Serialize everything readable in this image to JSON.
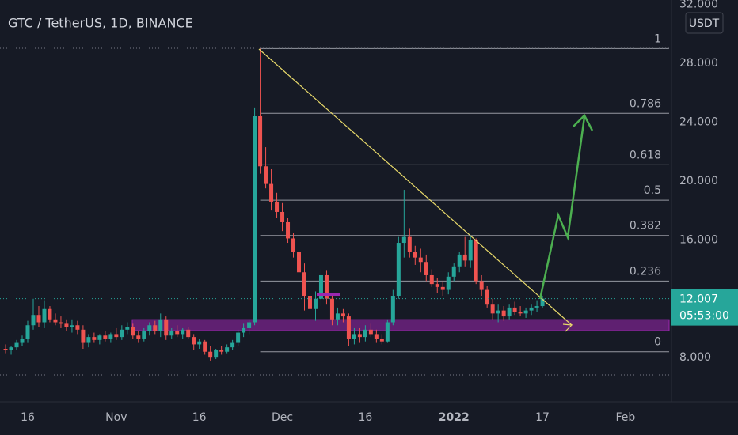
{
  "chart_data": {
    "type": "candlestick",
    "title": "GTC / TetherUS, 1D, BINANCE",
    "currency": "USDT",
    "countdown": "05:53:00",
    "up_color": "#26a69a",
    "down_color": "#ef5350",
    "categories": [
      null,
      null,
      null,
      null,
      "16",
      null,
      null,
      null,
      null,
      null,
      null,
      null,
      null,
      null,
      null,
      null,
      null,
      null,
      null,
      null,
      "Nov",
      null,
      null,
      null,
      null,
      null,
      null,
      null,
      null,
      null,
      null,
      null,
      null,
      null,
      null,
      "16",
      null,
      null,
      null,
      null,
      null,
      null,
      null,
      null,
      null,
      null,
      null,
      null,
      null,
      null,
      "Dec",
      null,
      null,
      null,
      null,
      null,
      null,
      null,
      null,
      null,
      null,
      null,
      null,
      null,
      null,
      "16",
      null,
      null,
      null,
      null,
      null,
      null,
      null,
      null,
      null,
      null,
      null,
      null,
      null,
      null,
      null,
      "2022",
      null,
      null,
      null,
      null,
      null,
      null,
      null,
      null,
      null,
      null,
      null,
      null,
      null,
      null,
      null,
      "17",
      null,
      null,
      null,
      null,
      null,
      null,
      null,
      null,
      null,
      null,
      null,
      null,
      null,
      null,
      "Feb",
      null,
      null,
      null,
      null,
      null,
      null
    ],
    "open": [
      8.6,
      8.5,
      8.7,
      9.0,
      9.3,
      10.2,
      10.9,
      10.4,
      11.3,
      10.6,
      10.4,
      10.3,
      10.1,
      10.2,
      9.9,
      9.0,
      9.4,
      9.2,
      9.5,
      9.3,
      9.6,
      9.4,
      9.9,
      10.1,
      9.5,
      9.3,
      9.8,
      10.2,
      9.8,
      10.6,
      9.5,
      9.8,
      9.6,
      9.9,
      9.4,
      8.9,
      9.1,
      8.4,
      8.0,
      8.5,
      8.4,
      8.7,
      9.0,
      9.7,
      10.0,
      10.4,
      24.4,
      21.0,
      19.8,
      18.6,
      17.9,
      17.2,
      16.1,
      15.2,
      13.8,
      12.2,
      11.3,
      12.0,
      13.6,
      12.0,
      10.6,
      11.0,
      10.8,
      9.3,
      9.6,
      9.4,
      9.9,
      9.6,
      9.3,
      9.1,
      10.4,
      12.2,
      15.8,
      16.2,
      15.2,
      14.8,
      14.5,
      13.6,
      13.0,
      12.8,
      12.6,
      13.5,
      14.2,
      15.0,
      14.6,
      16.0,
      13.2,
      12.6,
      11.6,
      11.0,
      11.2,
      10.8,
      11.4,
      11.1,
      11.0,
      11.2,
      11.4,
      11.5,
      null,
      null,
      null,
      null,
      null,
      null,
      null,
      null,
      null,
      null,
      null,
      null,
      null,
      null,
      null,
      null,
      null,
      null,
      null,
      null,
      null
    ],
    "high": [
      8.9,
      8.8,
      9.2,
      9.5,
      10.5,
      12.0,
      11.5,
      11.9,
      11.5,
      11.0,
      10.8,
      10.6,
      10.6,
      10.5,
      10.2,
      9.6,
      9.7,
      9.6,
      9.8,
      9.7,
      10.0,
      10.2,
      10.4,
      10.3,
      9.8,
      10.0,
      10.4,
      10.5,
      11.0,
      10.8,
      10.0,
      10.2,
      10.0,
      10.1,
      9.6,
      9.3,
      9.2,
      8.8,
      8.6,
      8.8,
      8.9,
      9.2,
      9.9,
      10.3,
      10.6,
      25.0,
      29.0,
      22.3,
      20.8,
      19.2,
      18.5,
      17.5,
      16.5,
      15.6,
      14.4,
      12.6,
      12.5,
      14.0,
      13.9,
      12.3,
      11.4,
      11.3,
      11.0,
      10.0,
      10.0,
      10.2,
      10.3,
      9.9,
      9.6,
      10.6,
      12.6,
      16.2,
      19.4,
      16.8,
      15.6,
      15.4,
      15.0,
      14.0,
      13.4,
      13.2,
      13.8,
      14.4,
      15.2,
      16.2,
      16.3,
      16.1,
      13.6,
      12.9,
      12.0,
      11.6,
      11.5,
      11.6,
      11.8,
      11.5,
      11.4,
      11.6,
      11.9,
      12.2,
      null,
      null,
      null,
      null,
      null,
      null,
      null,
      null,
      null,
      null,
      null,
      null,
      null,
      null,
      null,
      null,
      null,
      null,
      null,
      null,
      null
    ],
    "low": [
      8.3,
      8.2,
      8.5,
      8.8,
      9.0,
      9.9,
      10.1,
      10.0,
      10.4,
      10.2,
      10.0,
      9.8,
      9.7,
      9.6,
      8.6,
      8.7,
      9.0,
      8.9,
      9.1,
      9.0,
      9.2,
      9.2,
      9.6,
      9.3,
      9.0,
      9.1,
      9.5,
      9.6,
      9.4,
      9.2,
      9.3,
      9.4,
      9.3,
      9.3,
      8.5,
      8.6,
      8.2,
      7.8,
      7.9,
      8.2,
      8.3,
      8.5,
      8.8,
      9.4,
      9.6,
      10.2,
      20.5,
      19.5,
      18.0,
      17.5,
      16.6,
      15.8,
      14.8,
      13.2,
      11.2,
      10.2,
      10.5,
      11.5,
      11.6,
      10.2,
      10.2,
      10.4,
      8.8,
      8.9,
      9.0,
      9.1,
      9.4,
      9.0,
      8.9,
      9.0,
      10.2,
      12.0,
      14.8,
      14.8,
      14.3,
      13.8,
      13.2,
      12.8,
      12.4,
      12.2,
      12.3,
      13.2,
      13.8,
      14.2,
      14.1,
      13.0,
      12.2,
      11.4,
      10.6,
      10.4,
      10.5,
      10.6,
      10.9,
      10.8,
      10.7,
      10.9,
      11.1,
      11.4,
      null,
      null,
      null,
      null,
      null,
      null,
      null,
      null,
      null,
      null,
      null,
      null,
      null,
      null,
      null,
      null,
      null,
      null,
      null,
      null,
      null
    ],
    "close": [
      8.5,
      8.7,
      9.0,
      9.3,
      10.2,
      10.9,
      10.4,
      11.3,
      10.6,
      10.4,
      10.3,
      10.1,
      10.2,
      9.9,
      9.0,
      9.4,
      9.2,
      9.5,
      9.3,
      9.6,
      9.4,
      9.9,
      10.1,
      9.5,
      9.3,
      9.8,
      10.2,
      9.8,
      10.6,
      9.5,
      9.8,
      9.6,
      9.9,
      9.4,
      8.9,
      9.1,
      8.4,
      8.0,
      8.5,
      8.4,
      8.7,
      9.0,
      9.7,
      10.0,
      10.4,
      24.4,
      21.0,
      19.8,
      18.6,
      17.9,
      17.2,
      16.1,
      15.2,
      13.8,
      12.2,
      11.3,
      12.0,
      13.6,
      12.0,
      10.6,
      11.0,
      10.8,
      9.3,
      9.6,
      9.4,
      9.9,
      9.6,
      9.3,
      9.1,
      10.4,
      12.2,
      15.8,
      16.2,
      15.2,
      14.8,
      14.5,
      13.6,
      13.0,
      12.8,
      12.6,
      13.5,
      14.2,
      15.0,
      14.6,
      16.0,
      13.2,
      12.6,
      11.6,
      11.0,
      11.2,
      10.8,
      11.4,
      11.1,
      11.0,
      11.2,
      11.4,
      11.5,
      12.007,
      null,
      null,
      null,
      null,
      null,
      null,
      null,
      null,
      null,
      null,
      null,
      null,
      null,
      null,
      null,
      null,
      null,
      null,
      null,
      null,
      null
    ],
    "ylim": [
      5,
      32.3
    ],
    "yticks": [
      {
        "value": 8,
        "label": "8.000"
      },
      {
        "value": 12,
        "label": "12.000"
      },
      {
        "value": 16,
        "label": "16.000"
      },
      {
        "value": 20,
        "label": "20.000"
      },
      {
        "value": 24,
        "label": "24.000"
      },
      {
        "value": 28,
        "label": "28.000"
      },
      {
        "value": 32,
        "label": "32.000"
      }
    ],
    "fib_levels": [
      {
        "label": "1",
        "value": 29.0
      },
      {
        "label": "0.786",
        "value": 24.6
      },
      {
        "label": "0.618",
        "value": 21.1
      },
      {
        "label": "0.5",
        "value": 18.7
      },
      {
        "label": "0.382",
        "value": 16.3
      },
      {
        "label": "0.236",
        "value": 13.2
      },
      {
        "label": "0",
        "value": 8.4
      }
    ],
    "zone": {
      "low": 9.83,
      "high": 10.58,
      "color": "#9c27b0"
    }
  }
}
